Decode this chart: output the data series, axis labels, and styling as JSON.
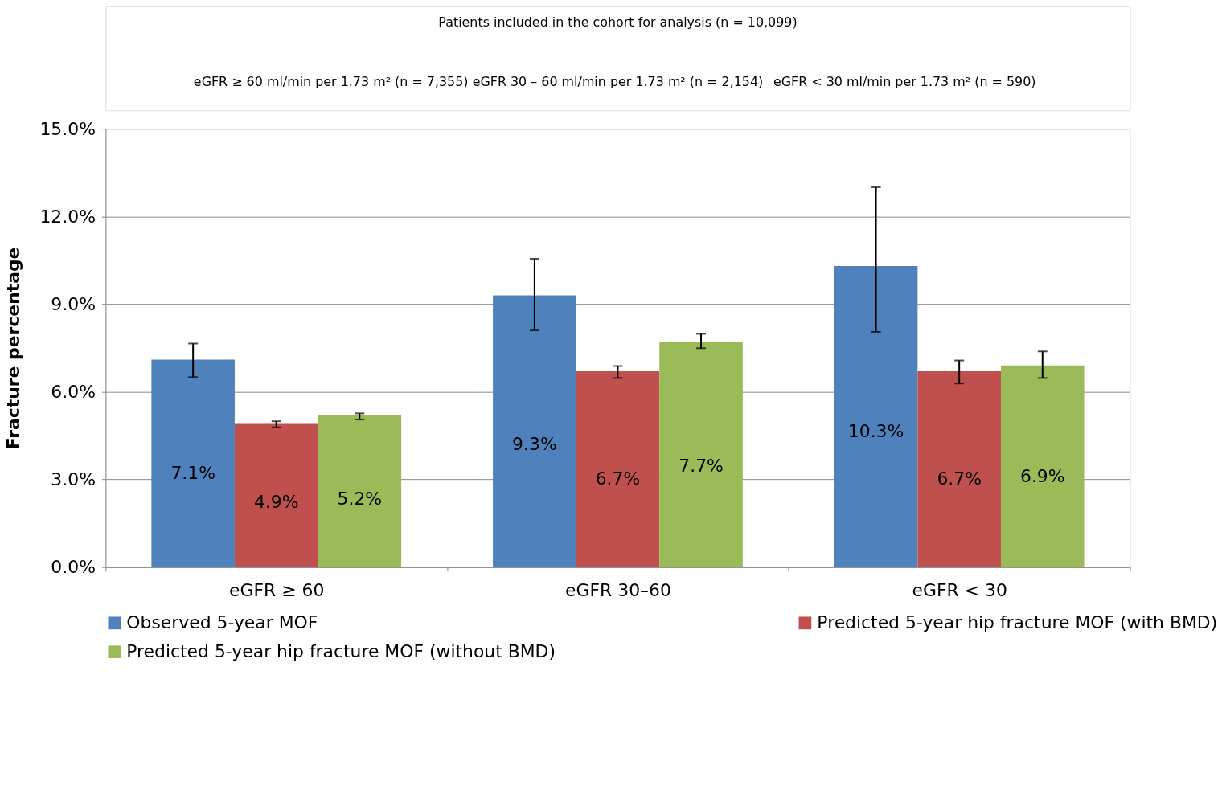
{
  "chart_data": {
    "type": "bar",
    "ylabel": "Fracture percentage",
    "categories": [
      "eGFR ≥ 60",
      "eGFR 30–60",
      "eGFR < 30"
    ],
    "series": [
      {
        "name": "Observed 5-year MOF",
        "color": "#4f81bd",
        "values": [
          7.1,
          9.3,
          10.3
        ],
        "value_labels": [
          "7.1%",
          "9.3%",
          "10.3%"
        ],
        "errors": [
          [
            6.5,
            7.65
          ],
          [
            8.1,
            10.55
          ],
          [
            8.05,
            13.0
          ]
        ]
      },
      {
        "name": "Predicted 5-year hip fracture MOF (with BMD)",
        "color": "#c0504d",
        "values": [
          4.9,
          6.7,
          6.7
        ],
        "value_labels": [
          "4.9%",
          "6.7%",
          "6.7%"
        ],
        "errors": [
          [
            4.78,
            4.99
          ],
          [
            6.47,
            6.88
          ],
          [
            6.28,
            7.07
          ]
        ]
      },
      {
        "name": "Predicted 5-year hip fracture MOF (without BMD)",
        "color": "#9bbb59",
        "values": [
          5.2,
          7.7,
          6.9
        ],
        "value_labels": [
          "5.2%",
          "7.7%",
          "6.9%"
        ],
        "errors": [
          [
            5.05,
            5.26
          ],
          [
            7.49,
            7.98
          ],
          [
            6.47,
            7.38
          ]
        ]
      }
    ],
    "ylim": [
      0,
      15
    ],
    "yticks": [
      {
        "value": 0,
        "label": "0.0%"
      },
      {
        "value": 3,
        "label": "3.0%"
      },
      {
        "value": 6,
        "label": "6.0%"
      },
      {
        "value": 9,
        "label": "9.0%"
      },
      {
        "value": 12,
        "label": "12.0%"
      },
      {
        "value": 15,
        "label": "15.0%"
      }
    ],
    "grid": "y",
    "legend": "bottom",
    "annotations": [
      "Patients included in the cohort for analysis (n = 10,099)",
      "eGFR ≥ 60 ml/min per 1.73 m² (n = 7,355)",
      "eGFR 30 – 60 ml/min per 1.73 m² (n = 2,154)",
      "eGFR < 30 ml/min per 1.73 m² (n = 590)"
    ]
  }
}
